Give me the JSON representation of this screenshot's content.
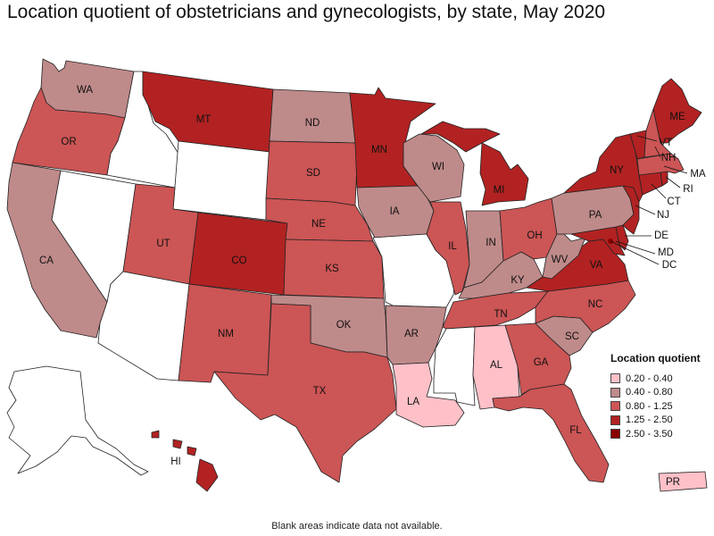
{
  "title": "Location quotient of obstetricians and gynecologists, by state, May 2020",
  "footnote": "Blank areas indicate data not available.",
  "legend": {
    "title": "Location quotient",
    "items": [
      {
        "label": "0.20 - 0.40",
        "color": "#ffc0c8"
      },
      {
        "label": "0.40 - 0.80",
        "color": "#bf8a8a"
      },
      {
        "label": "0.80 - 1.25",
        "color": "#cc5555"
      },
      {
        "label": "1.25 - 2.50",
        "color": "#b22222"
      },
      {
        "label": "2.50 - 3.50",
        "color": "#8b0000"
      }
    ]
  },
  "colors": {
    "no_data": "#ffffff",
    "c1": "#ffc0c8",
    "c2": "#bf8a8a",
    "c3": "#cc5555",
    "c4": "#b22222",
    "c5": "#8b0000"
  },
  "states": {
    "WA": {
      "label": "WA",
      "class": "c2"
    },
    "OR": {
      "label": "OR",
      "class": "c3"
    },
    "CA": {
      "label": "CA",
      "class": "c2"
    },
    "ID": {
      "class": "no_data"
    },
    "NV": {
      "class": "no_data"
    },
    "MT": {
      "label": "MT",
      "class": "c4"
    },
    "WY": {
      "class": "no_data"
    },
    "UT": {
      "label": "UT",
      "class": "c3"
    },
    "AZ": {
      "class": "no_data"
    },
    "CO": {
      "label": "CO",
      "class": "c4"
    },
    "NM": {
      "label": "NM",
      "class": "c3"
    },
    "ND": {
      "label": "ND",
      "class": "c2"
    },
    "SD": {
      "label": "SD",
      "class": "c3"
    },
    "NE": {
      "label": "NE",
      "class": "c3"
    },
    "KS": {
      "label": "KS",
      "class": "c3"
    },
    "OK": {
      "label": "OK",
      "class": "c2"
    },
    "TX": {
      "label": "TX",
      "class": "c3"
    },
    "MN": {
      "label": "MN",
      "class": "c4"
    },
    "IA": {
      "label": "IA",
      "class": "c2"
    },
    "MO": {
      "class": "no_data"
    },
    "AR": {
      "label": "AR",
      "class": "c2"
    },
    "LA": {
      "label": "LA",
      "class": "c1"
    },
    "WI": {
      "label": "WI",
      "class": "c2"
    },
    "IL": {
      "label": "IL",
      "class": "c3"
    },
    "MI": {
      "label": "MI",
      "class": "c4"
    },
    "IN": {
      "label": "IN",
      "class": "c2"
    },
    "OH": {
      "label": "OH",
      "class": "c3"
    },
    "KY": {
      "label": "KY",
      "class": "c2"
    },
    "TN": {
      "label": "TN",
      "class": "c3"
    },
    "MS": {
      "class": "no_data"
    },
    "AL": {
      "label": "AL",
      "class": "c1"
    },
    "GA": {
      "label": "GA",
      "class": "c3"
    },
    "FL": {
      "label": "FL",
      "class": "c3"
    },
    "SC": {
      "label": "SC",
      "class": "c2"
    },
    "NC": {
      "label": "NC",
      "class": "c3"
    },
    "VA": {
      "label": "VA",
      "class": "c4"
    },
    "WV": {
      "label": "WV",
      "class": "c2"
    },
    "PA": {
      "label": "PA",
      "class": "c2"
    },
    "NY": {
      "label": "NY",
      "class": "c4"
    },
    "VT": {
      "label": "VT",
      "class": "c4"
    },
    "NH": {
      "label": "NH",
      "class": "c3"
    },
    "ME": {
      "label": "ME",
      "class": "c4"
    },
    "MA": {
      "label": "MA",
      "class": "c3"
    },
    "RI": {
      "label": "RI",
      "class": "c4"
    },
    "CT": {
      "label": "CT",
      "class": "c4"
    },
    "NJ": {
      "label": "NJ",
      "class": "c4"
    },
    "DE": {
      "label": "DE",
      "class": "c4"
    },
    "MD": {
      "label": "MD",
      "class": "c4"
    },
    "DC": {
      "label": "DC",
      "class": "c5"
    },
    "AK": {
      "class": "no_data"
    },
    "HI": {
      "label": "HI",
      "class": "c4"
    },
    "PR": {
      "label": "PR",
      "class": "c1"
    }
  }
}
